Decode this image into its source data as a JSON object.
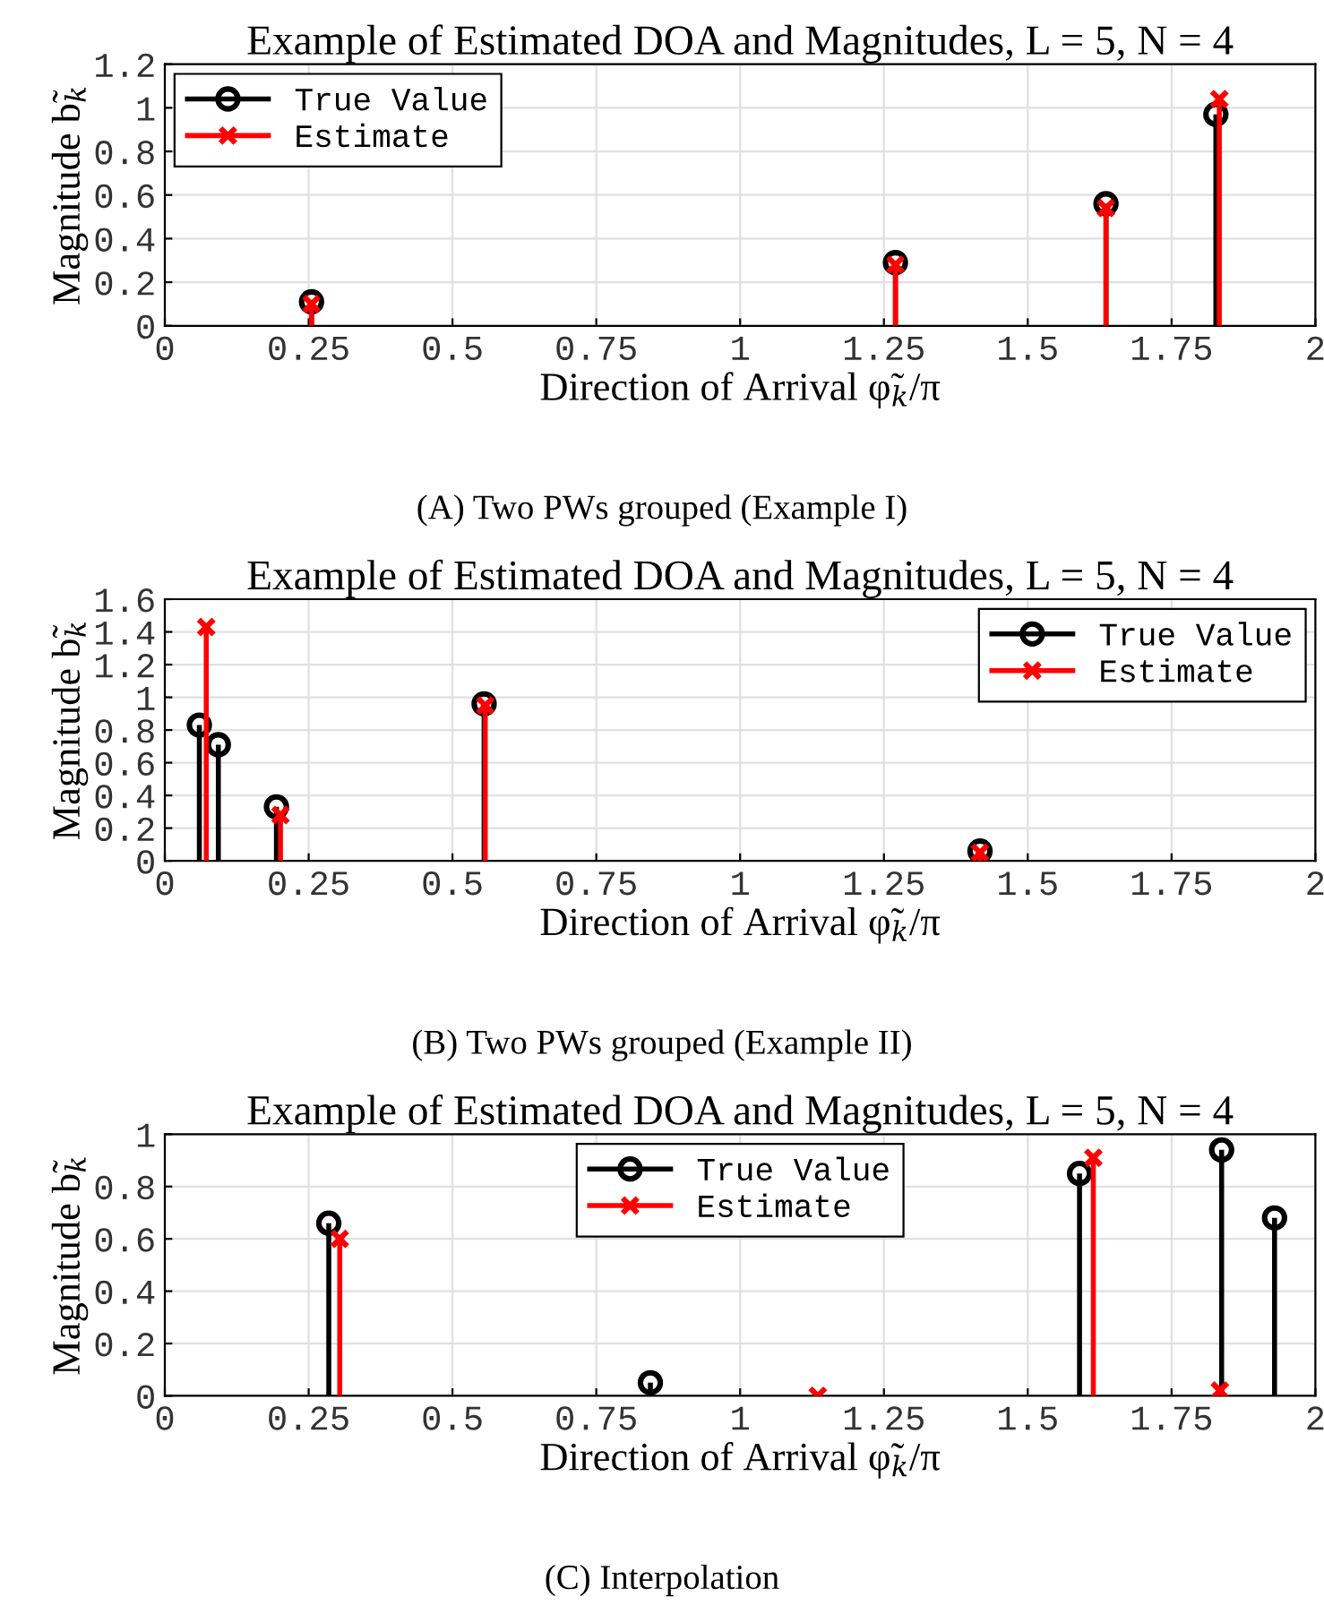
{
  "chart_data": [
    {
      "type": "lollipop",
      "title": "Example of Estimated DOA and Magnitudes, L = 5, N = 4",
      "xlabel": "Direction of Arrival φ̃$_{k}$/π",
      "ylabel": "Magnitude b̃$_{k}$",
      "annotations": [
        "(A) Two PWs grouped (Example I)"
      ],
      "xlim": [
        0,
        2
      ],
      "xticks": [
        0,
        0.25,
        0.5,
        0.75,
        1,
        1.25,
        1.5,
        1.75,
        2
      ],
      "ylim": [
        0,
        1.2
      ],
      "yticks": [
        0,
        0.2,
        0.4,
        0.6,
        0.8,
        1,
        1.2
      ],
      "grid": true,
      "legend": "top left",
      "series": [
        {
          "name": "True Value",
          "color": "#000000",
          "marker": "circle",
          "x": [
            0.255,
            1.27,
            1.636,
            1.827
          ],
          "values": [
            0.11,
            0.29,
            0.56,
            0.97
          ]
        },
        {
          "name": "Estimate",
          "color": "#ff0000",
          "marker": "cross",
          "x": [
            0.255,
            1.27,
            1.636,
            1.833
          ],
          "values": [
            0.1,
            0.28,
            0.54,
            1.04
          ]
        }
      ]
    },
    {
      "type": "lollipop",
      "title": "Example of Estimated DOA and Magnitudes, L = 5, N = 4",
      "xlabel": "Direction of Arrival φ̃$_{k}$/π",
      "ylabel": "Magnitude b̃$_{k}$",
      "annotations": [
        "(B) Two PWs grouped (Example II)"
      ],
      "xlim": [
        0,
        2
      ],
      "xticks": [
        0,
        0.25,
        0.5,
        0.75,
        1,
        1.25,
        1.5,
        1.75,
        2
      ],
      "ylim": [
        0,
        1.6
      ],
      "yticks": [
        0,
        0.2,
        0.4,
        0.6,
        0.8,
        1,
        1.2,
        1.4,
        1.6
      ],
      "grid": true,
      "legend": "top right",
      "series": [
        {
          "name": "True Value",
          "color": "#000000",
          "marker": "circle",
          "x": [
            0.06,
            0.093,
            0.194,
            0.555,
            1.417
          ],
          "values": [
            0.83,
            0.71,
            0.33,
            0.96,
            0.06
          ]
        },
        {
          "name": "Estimate",
          "color": "#ff0000",
          "marker": "cross",
          "x": [
            0.072,
            0.201,
            0.557,
            1.417
          ],
          "values": [
            1.43,
            0.28,
            0.95,
            0.05
          ]
        }
      ]
    },
    {
      "type": "lollipop",
      "title": "Example of Estimated DOA and Magnitudes, L = 5, N = 4",
      "xlabel": "Direction of Arrival φ̃$_{k}$/π",
      "ylabel": "Magnitude b̃$_{k}$",
      "annotations": [
        "(C) Interpolation"
      ],
      "xlim": [
        0,
        2
      ],
      "xticks": [
        0,
        0.25,
        0.5,
        0.75,
        1,
        1.25,
        1.5,
        1.75,
        2
      ],
      "ylim": [
        0,
        1
      ],
      "yticks": [
        0,
        0.2,
        0.4,
        0.6,
        0.8,
        1
      ],
      "grid": true,
      "legend": "top",
      "series": [
        {
          "name": "True Value",
          "color": "#000000",
          "marker": "circle",
          "x": [
            0.285,
            0.844,
            1.59,
            1.837,
            1.929
          ],
          "values": [
            0.66,
            0.05,
            0.85,
            0.94,
            0.68
          ]
        },
        {
          "name": "Estimate",
          "color": "#ff0000",
          "marker": "cross",
          "x": [
            0.304,
            1.135,
            1.614,
            1.834
          ],
          "values": [
            0.6,
            0,
            0.91,
            0.02
          ]
        }
      ]
    }
  ]
}
